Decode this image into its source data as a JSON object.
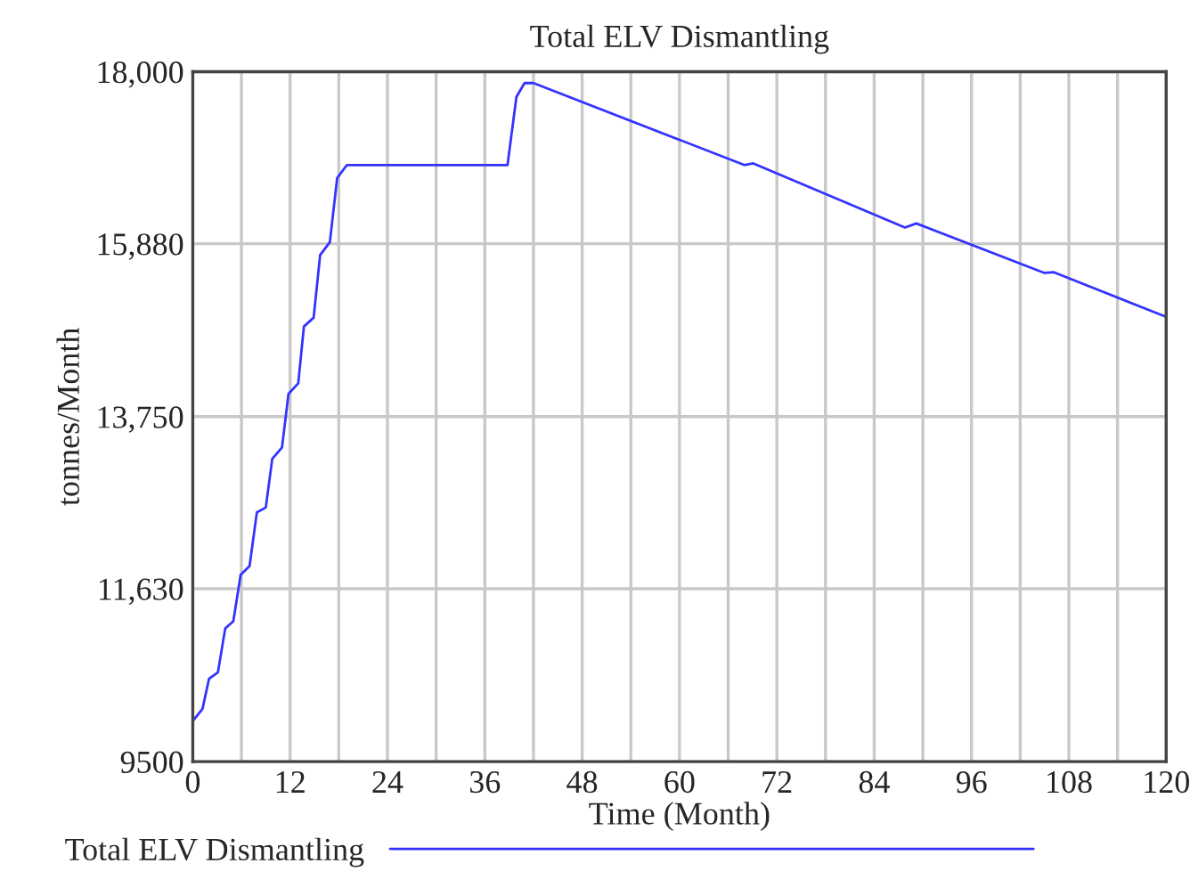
{
  "chart_data": {
    "type": "line",
    "title": "Total ELV Dismantling",
    "xlabel": "Time (Month)",
    "ylabel": "tonnes/Month",
    "xlim": [
      0,
      120
    ],
    "ylim": [
      9500,
      18000
    ],
    "xticks": [
      0,
      {
        "value": 6,
        "label": null
      },
      12,
      {
        "value": 18,
        "label": null
      },
      24,
      {
        "value": 30,
        "label": null
      },
      36,
      {
        "value": 42,
        "label": null
      },
      48,
      {
        "value": 54,
        "label": null
      },
      60,
      {
        "value": 66,
        "label": null
      },
      72,
      {
        "value": 78,
        "label": null
      },
      84,
      {
        "value": 90,
        "label": null
      },
      96,
      {
        "value": 102,
        "label": null
      },
      108,
      {
        "value": 114,
        "label": null
      },
      120
    ],
    "yticks": [
      {
        "value": 9500,
        "label": "9500"
      },
      {
        "value": 11630,
        "label": "11,630"
      },
      {
        "value": 13750,
        "label": "13,750"
      },
      {
        "value": 15880,
        "label": "15,880"
      },
      {
        "value": 18000,
        "label": "18,000"
      }
    ],
    "grid": true,
    "legend": "bottom",
    "line_style": "solid",
    "series": [
      {
        "name": "Total ELV Dismantling",
        "color": "#3333ff",
        "x": [
          0,
          1.2,
          2,
          3.1,
          4,
          5,
          5.9,
          7,
          7.9,
          9,
          9.8,
          11,
          11.8,
          13,
          13.7,
          14.9,
          15.7,
          16.9,
          17.8,
          19,
          38.8,
          39.9,
          40.9,
          42,
          68,
          69.1,
          87.8,
          89.2,
          105,
          106.1,
          120
        ],
        "values": [
          10000,
          10150,
          10520,
          10600,
          11140,
          11230,
          11800,
          11910,
          12570,
          12630,
          13230,
          13370,
          14030,
          14160,
          14860,
          14970,
          15740,
          15900,
          16690,
          16850,
          16850,
          17690,
          17860,
          17860,
          16850,
          16870,
          16080,
          16130,
          15520,
          15530,
          14980
        ]
      }
    ]
  }
}
